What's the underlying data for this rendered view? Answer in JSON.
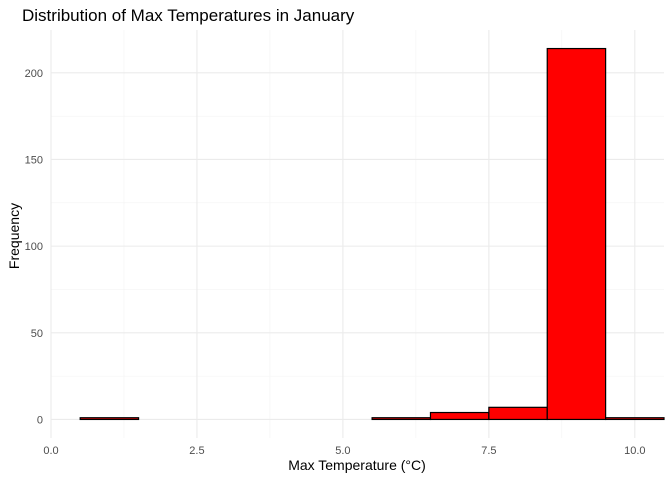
{
  "chart_data": {
    "type": "bar",
    "title": "Distribution of Max Temperatures in January",
    "xlabel": "Max Temperature (°C)",
    "ylabel": "Frequency",
    "bin_width": 1,
    "bins": [
      {
        "x_start": 0.5,
        "x_end": 1.5,
        "count": 1
      },
      {
        "x_start": 1.5,
        "x_end": 2.5,
        "count": 0
      },
      {
        "x_start": 2.5,
        "x_end": 3.5,
        "count": 0
      },
      {
        "x_start": 3.5,
        "x_end": 4.5,
        "count": 0
      },
      {
        "x_start": 4.5,
        "x_end": 5.5,
        "count": 0
      },
      {
        "x_start": 5.5,
        "x_end": 6.5,
        "count": 1
      },
      {
        "x_start": 6.5,
        "x_end": 7.5,
        "count": 4
      },
      {
        "x_start": 7.5,
        "x_end": 8.5,
        "count": 7
      },
      {
        "x_start": 8.5,
        "x_end": 9.5,
        "count": 214
      },
      {
        "x_start": 9.5,
        "x_end": 10.5,
        "count": 1
      }
    ],
    "xlim": [
      0,
      10.5
    ],
    "ylim": [
      -10.7,
      224.7
    ],
    "x_ticks": [
      0,
      2.5,
      5,
      7.5,
      10
    ],
    "x_tick_labels": [
      "0.0",
      "2.5",
      "5.0",
      "7.5",
      "10.0"
    ],
    "y_ticks": [
      0,
      50,
      100,
      150,
      200
    ],
    "y_tick_labels": [
      "0",
      "50",
      "100",
      "150",
      "200"
    ],
    "fill_color": "#ff0000",
    "outline_color": "#000000",
    "grid": true,
    "legend": "none"
  }
}
